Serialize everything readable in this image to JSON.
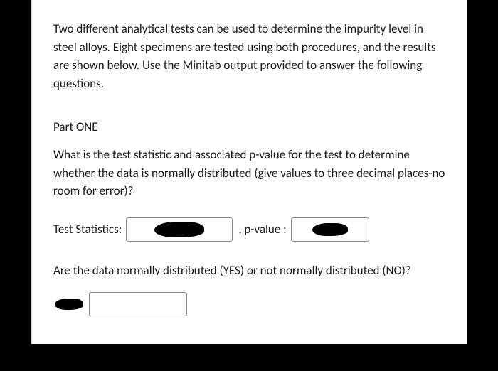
{
  "intro": "Two different analytical tests can be used to determine the impurity level in steel alloys. Eight specimens are tested using both procedures, and the results are shown below. Use the Minitab output provided to answer the following questions.",
  "partTitle": "Part ONE",
  "question": "What is the test statistic and associated p-value for the test to determine whether the data is normally distributed (give values to three decimal places-no room for error)?",
  "labels": {
    "testStatistics": "Test Statistics:",
    "pValue": ", p-value :"
  },
  "followup": "Are the data normally distributed (YES) or not normally distributed (NO)?"
}
